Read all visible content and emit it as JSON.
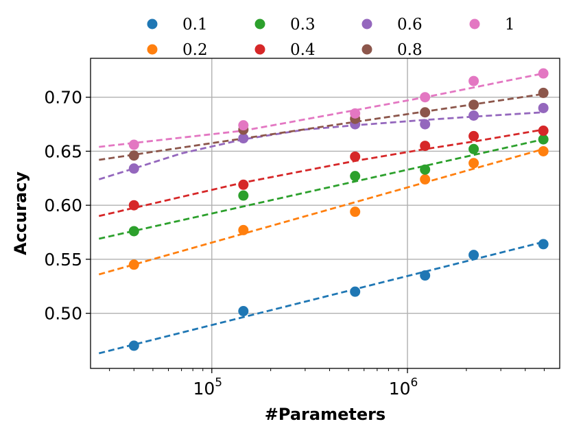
{
  "chart_data": {
    "type": "scatter",
    "xscale": "log",
    "xlabel": "#Parameters",
    "ylabel": "Accuracy",
    "xlim": [
      24000,
      6000000
    ],
    "ylim": [
      0.449,
      0.736
    ],
    "grid": true,
    "legend": {
      "placement": "top-center-outside",
      "columns": 4
    },
    "x_ticks": [
      {
        "value": 100000,
        "base": "10",
        "exponent": "5"
      },
      {
        "value": 1000000,
        "base": "10",
        "exponent": "6"
      }
    ],
    "y_ticks": [
      {
        "value": 0.5,
        "label": "0.50"
      },
      {
        "value": 0.55,
        "label": "0.55"
      },
      {
        "value": 0.6,
        "label": "0.60"
      },
      {
        "value": 0.65,
        "label": "0.65"
      },
      {
        "value": 0.7,
        "label": "0.70"
      }
    ],
    "x": [
      40000,
      145000,
      540000,
      1230000,
      2180000,
      4950000
    ],
    "series": [
      {
        "name": "0.1",
        "color": "#1f77b4",
        "values": [
          0.47,
          0.502,
          0.52,
          0.535,
          0.554,
          0.564
        ],
        "fit": {
          "x": [
            26500,
            4950000
          ],
          "y": [
            0.463,
            0.566
          ]
        }
      },
      {
        "name": "0.2",
        "color": "#ff7f0e",
        "values": [
          0.545,
          0.577,
          0.594,
          0.624,
          0.639,
          0.65
        ],
        "fit": {
          "x": [
            26500,
            4950000
          ],
          "y": [
            0.536,
            0.652
          ]
        }
      },
      {
        "name": "0.3",
        "color": "#2ca02c",
        "values": [
          0.576,
          0.609,
          0.627,
          0.633,
          0.652,
          0.661
        ],
        "fit": {
          "x": [
            26500,
            4950000
          ],
          "y": [
            0.569,
            0.661
          ]
        }
      },
      {
        "name": "0.4",
        "color": "#d62728",
        "values": [
          0.6,
          0.619,
          0.645,
          0.655,
          0.664,
          0.669
        ],
        "fit": {
          "x": [
            26500,
            145000,
            540000,
            1230000,
            2180000,
            4950000
          ],
          "y": [
            0.59,
            0.621,
            0.641,
            0.652,
            0.659,
            0.67
          ]
        }
      },
      {
        "name": "0.6",
        "color": "#9467bd",
        "values": [
          0.634,
          0.662,
          0.675,
          0.675,
          0.683,
          0.69
        ],
        "fit": {
          "x": [
            26500,
            40000,
            70000,
            145000,
            300000,
            540000,
            1230000,
            2180000,
            4950000
          ],
          "y": [
            0.624,
            0.634,
            0.648,
            0.661,
            0.67,
            0.674,
            0.679,
            0.682,
            0.686
          ]
        }
      },
      {
        "name": "0.8",
        "color": "#8c564b",
        "values": [
          0.646,
          0.67,
          0.68,
          0.686,
          0.693,
          0.704
        ],
        "fit": {
          "x": [
            26500,
            4950000
          ],
          "y": [
            0.642,
            0.703
          ]
        }
      },
      {
        "name": "1",
        "color": "#e377c2",
        "values": [
          0.656,
          0.674,
          0.685,
          0.7,
          0.715,
          0.722
        ],
        "fit": {
          "x": [
            26500,
            145000,
            540000,
            1230000,
            2180000,
            4950000
          ],
          "y": [
            0.654,
            0.669,
            0.688,
            0.7,
            0.709,
            0.722
          ]
        }
      }
    ]
  }
}
